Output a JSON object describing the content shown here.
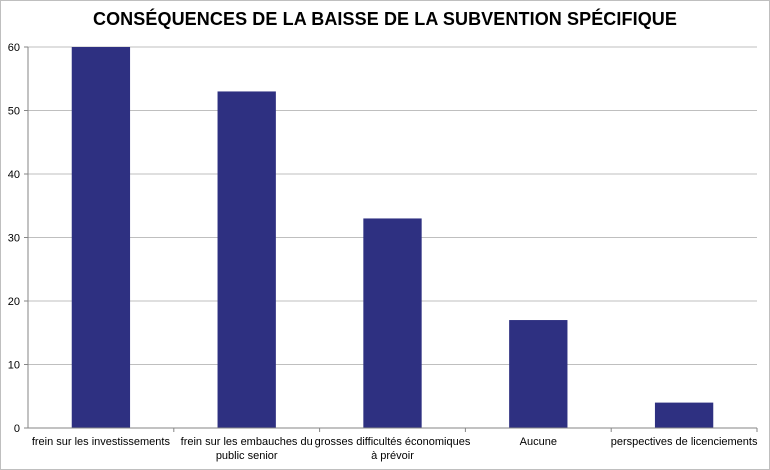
{
  "chart_data": {
    "type": "bar",
    "title": "CONSÉQUENCES DE LA BAISSE DE LA SUBVENTION SPÉCIFIQUE",
    "xlabel": "",
    "ylabel": "",
    "categories": [
      [
        "frein sur les investissements"
      ],
      [
        "frein sur les embauches du",
        "public senior"
      ],
      [
        "grosses difficultés économiques",
        "à prévoir"
      ],
      [
        "Aucune"
      ],
      [
        "perspectives de licenciements"
      ]
    ],
    "values": [
      60,
      53,
      33,
      17,
      4
    ],
    "ylim": [
      0,
      60
    ],
    "yticks": [
      "0",
      "10",
      "20",
      "30",
      "40",
      "50",
      "60"
    ],
    "grid": true,
    "legend": "none",
    "colors": {
      "bar": "#2e3081",
      "grid": "#bfbfbf",
      "axis": "#868686",
      "text": "#000000"
    }
  }
}
